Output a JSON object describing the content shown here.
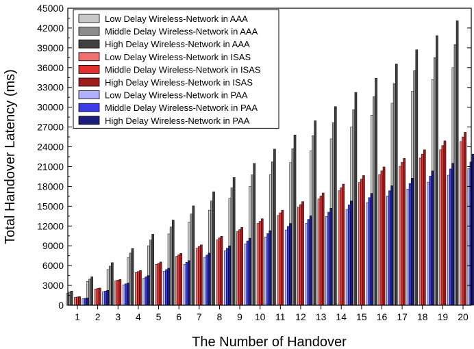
{
  "chart_data": {
    "type": "bar",
    "xlabel": "The Number of Handover",
    "ylabel": "Total Handover Latency (ms)",
    "ylim": [
      0,
      45000
    ],
    "y_ticks": [
      0,
      3000,
      6000,
      9000,
      12000,
      15000,
      18000,
      21000,
      24000,
      27000,
      30000,
      33000,
      36000,
      39000,
      42000,
      45000
    ],
    "categories": [
      "1",
      "2",
      "3",
      "4",
      "5",
      "6",
      "7",
      "8",
      "9",
      "10",
      "11",
      "12",
      "13",
      "14",
      "15",
      "16",
      "17",
      "18",
      "19",
      "20"
    ],
    "legend_position": "top-left",
    "grid": false,
    "series": [
      {
        "name": "Low Delay Wireless-Network in AAA",
        "color": "#c8c8c8",
        "values": [
          1800,
          3600,
          5400,
          7200,
          9000,
          10800,
          12600,
          14400,
          16200,
          18000,
          19800,
          21600,
          23400,
          25200,
          27000,
          28800,
          30600,
          32400,
          34200,
          36000
        ]
      },
      {
        "name": "Middle Delay Wireless-Network in AAA",
        "color": "#8c8c8c",
        "values": [
          1980,
          3950,
          5920,
          7900,
          9880,
          11850,
          13820,
          15800,
          17780,
          19750,
          21720,
          23700,
          25680,
          27650,
          29620,
          31600,
          33580,
          35550,
          37520,
          39500
        ]
      },
      {
        "name": "High Delay Wireless-Network in AAA",
        "color": "#404040",
        "values": [
          2150,
          4300,
          6450,
          8600,
          10750,
          12900,
          15050,
          17200,
          19350,
          21500,
          23650,
          25800,
          27950,
          30100,
          32250,
          34400,
          36550,
          38700,
          40850,
          43100
        ]
      },
      {
        "name": "Low Delay Wireless-Network in ISAS",
        "color": "#f07070",
        "values": [
          1200,
          2450,
          3700,
          4950,
          6200,
          7400,
          8650,
          9900,
          11150,
          12400,
          13600,
          14850,
          16100,
          17350,
          18600,
          19800,
          21050,
          22300,
          23550,
          24800
        ]
      },
      {
        "name": "Middle Delay Wireless-Network in ISAS",
        "color": "#e03030",
        "values": [
          1250,
          2550,
          3800,
          5100,
          6350,
          7650,
          8900,
          10200,
          11450,
          12700,
          14000,
          15250,
          16550,
          17800,
          19100,
          20350,
          21650,
          22900,
          24200,
          25500
        ]
      },
      {
        "name": "High Delay Wireless-Network in ISAS",
        "color": "#a01c1c",
        "values": [
          1300,
          2600,
          3900,
          5250,
          6550,
          7850,
          9150,
          10450,
          11800,
          13100,
          14400,
          15700,
          17000,
          18350,
          19650,
          20950,
          22250,
          23550,
          24900,
          26200
        ]
      },
      {
        "name": "Low Delay Wireless-Network in PAA",
        "color": "#b0b0ff",
        "values": [
          1000,
          2050,
          3100,
          4100,
          5150,
          6200,
          7250,
          8250,
          9300,
          10350,
          11400,
          12400,
          13450,
          14500,
          15550,
          16550,
          17600,
          18650,
          19700,
          20700
        ]
      },
      {
        "name": "Middle Delay Wireless-Network in PAA",
        "color": "#3a3ae8",
        "values": [
          1050,
          2150,
          3250,
          4300,
          5400,
          6500,
          7600,
          8650,
          9750,
          10850,
          11950,
          13000,
          14100,
          15200,
          16300,
          17350,
          18450,
          19550,
          20650,
          21700
        ]
      },
      {
        "name": "High Delay Wireless-Network in PAA",
        "color": "#1c1c7a",
        "values": [
          1100,
          2250,
          3350,
          4500,
          5600,
          6750,
          7900,
          9000,
          10150,
          11300,
          12400,
          13550,
          14700,
          15800,
          16950,
          18100,
          19250,
          20350,
          21500,
          22900
        ]
      }
    ]
  }
}
